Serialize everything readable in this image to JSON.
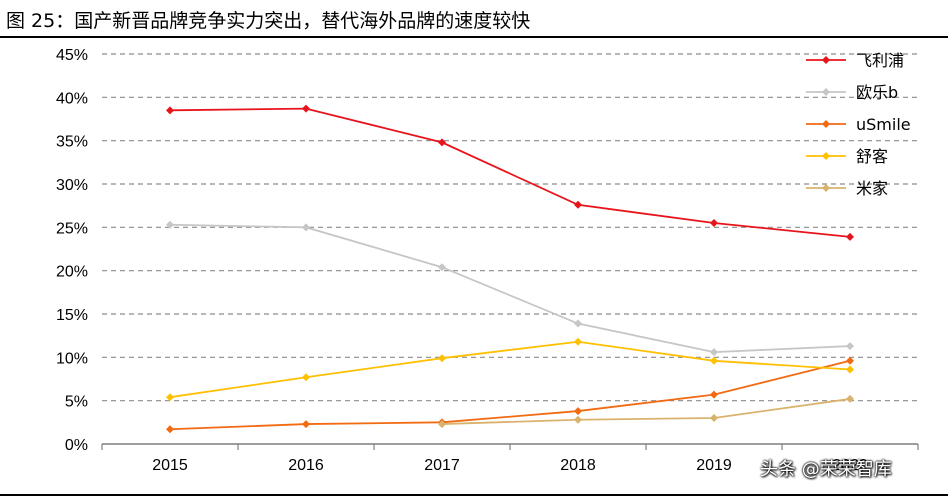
{
  "figure": {
    "title": "图 25：国产新晋品牌竞争实力突出，替代海外品牌的速度较快"
  },
  "watermark": {
    "text": "头条 @荣荣智库"
  },
  "chart_data": {
    "type": "line",
    "title": "",
    "xlabel": "",
    "ylabel": "",
    "x": [
      "2015",
      "2016",
      "2017",
      "2018",
      "2019",
      "2020"
    ],
    "ylim": [
      0,
      45
    ],
    "yticks": [
      0,
      5,
      10,
      15,
      20,
      25,
      30,
      35,
      40,
      45
    ],
    "ytick_labels": [
      "0%",
      "5%",
      "10%",
      "15%",
      "20%",
      "25%",
      "30%",
      "35%",
      "40%",
      "45%"
    ],
    "grid": "horizontal-dashed",
    "legend_position": "top-right",
    "series": [
      {
        "name": "飞利浦",
        "color": "#e8141c",
        "values": [
          38.5,
          38.7,
          34.8,
          27.6,
          25.5,
          23.9
        ]
      },
      {
        "name": "欧乐b",
        "color": "#c6c6c6",
        "values": [
          25.3,
          25.0,
          20.4,
          13.9,
          10.6,
          11.3
        ]
      },
      {
        "name": "uSmile",
        "color": "#f26a12",
        "values": [
          1.7,
          2.3,
          2.5,
          3.8,
          5.7,
          9.6
        ]
      },
      {
        "name": "舒客",
        "color": "#ffc000",
        "values": [
          5.4,
          7.7,
          9.9,
          11.8,
          9.6,
          8.6
        ]
      },
      {
        "name": "米家",
        "color": "#d9b36d",
        "values": [
          null,
          null,
          2.3,
          2.8,
          3.0,
          5.2
        ]
      }
    ]
  }
}
